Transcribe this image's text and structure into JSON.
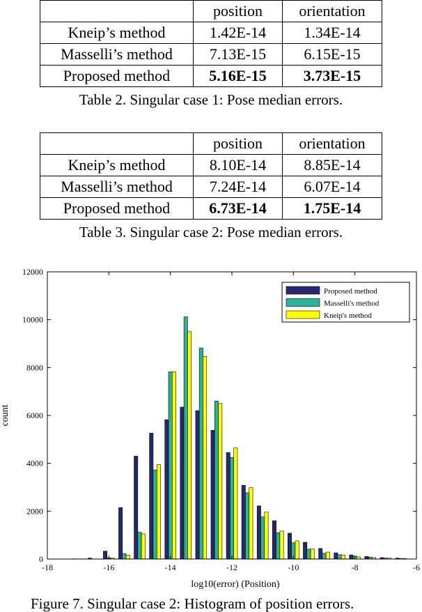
{
  "table2": {
    "header": [
      "",
      "position",
      "orientation"
    ],
    "rows": [
      [
        "Kneip’s method",
        "1.42E-14",
        "1.34E-14"
      ],
      [
        "Masselli’s method",
        "7.13E-15",
        "6.15E-15"
      ],
      [
        "Proposed method",
        "5.16E-15",
        "3.73E-15"
      ]
    ],
    "caption": "Table 2. Singular case 1: Pose median errors."
  },
  "table3": {
    "header": [
      "",
      "position",
      "orientation"
    ],
    "rows": [
      [
        "Kneip’s method",
        "8.10E-14",
        "8.85E-14"
      ],
      [
        "Masselli’s method",
        "7.24E-14",
        "6.07E-14"
      ],
      [
        "Proposed method",
        "6.73E-14",
        "1.75E-14"
      ]
    ],
    "caption": "Table 3. Singular case 2: Pose median errors."
  },
  "chart_data": {
    "type": "bar",
    "xlabel": "log10(error) (Position)",
    "ylabel": "count",
    "xlim": [
      -18,
      -6
    ],
    "ylim": [
      0,
      12000
    ],
    "xticks": [
      -18,
      -16,
      -14,
      -12,
      -10,
      -8,
      -6
    ],
    "yticks": [
      0,
      2000,
      4000,
      6000,
      8000,
      10000,
      12000
    ],
    "legend_position": "top-right",
    "x": [
      -17.5,
      -17.0,
      -16.5,
      -16.0,
      -15.5,
      -15.0,
      -14.5,
      -14.0,
      -13.5,
      -13.0,
      -12.5,
      -12.0,
      -11.5,
      -11.0,
      -10.5,
      -10.0,
      -9.5,
      -9.0,
      -8.5,
      -8.0,
      -7.5,
      -7.0,
      -6.5
    ],
    "series": [
      {
        "name": "Proposed method",
        "color": "#252a6e",
        "values": [
          0,
          10,
          40,
          330,
          2150,
          4300,
          5260,
          5820,
          6350,
          6200,
          5380,
          4450,
          3080,
          2220,
          1600,
          1080,
          700,
          440,
          260,
          170,
          110,
          60,
          40
        ]
      },
      {
        "name": "Masselli's method",
        "color": "#2bb598",
        "values": [
          0,
          0,
          5,
          50,
          230,
          1120,
          3720,
          7820,
          10120,
          8820,
          6600,
          4240,
          2770,
          1760,
          1100,
          680,
          410,
          240,
          180,
          120,
          80,
          40,
          20
        ]
      },
      {
        "name": "Kneip's method",
        "color": "#ffff00",
        "values": [
          0,
          0,
          5,
          40,
          160,
          1050,
          3940,
          7820,
          9500,
          8460,
          6500,
          4640,
          2980,
          1960,
          1170,
          760,
          420,
          290,
          170,
          90,
          60,
          40,
          20
        ]
      }
    ]
  },
  "figure_caption": "Figure 7. Singular case 2: Histogram of position errors."
}
